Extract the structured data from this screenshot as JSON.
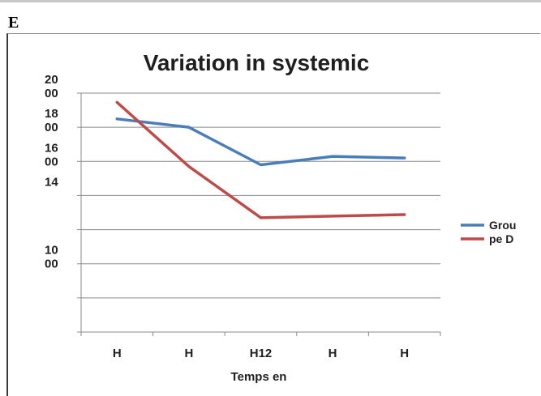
{
  "panel_label": "E",
  "chart_data": {
    "type": "line",
    "title": "Variation in systemic",
    "xlabel": "Temps en",
    "ylabel": "",
    "categories": [
      "H",
      "H",
      "H12",
      "H",
      "H"
    ],
    "y_ticks": [
      {
        "value": 1000,
        "label_lines": [
          "10",
          "00"
        ]
      },
      {
        "value": 1400,
        "label_lines": [
          "14"
        ]
      },
      {
        "value": 1600,
        "label_lines": [
          "16",
          "00"
        ]
      },
      {
        "value": 1800,
        "label_lines": [
          "18",
          "00"
        ]
      },
      {
        "value": 2000,
        "label_lines": [
          "20",
          "00"
        ]
      }
    ],
    "ylim": [
      600,
      2000
    ],
    "grid": true,
    "legend": {
      "position": "right",
      "text_lines": [
        "Grou",
        "pe D"
      ]
    },
    "series": [
      {
        "color": "#4a7ebb",
        "values": [
          1849,
          1800,
          1580,
          1629,
          1620
        ]
      },
      {
        "color": "#be4b48",
        "values": [
          1946,
          1570,
          1270,
          1279,
          1288
        ]
      }
    ]
  }
}
